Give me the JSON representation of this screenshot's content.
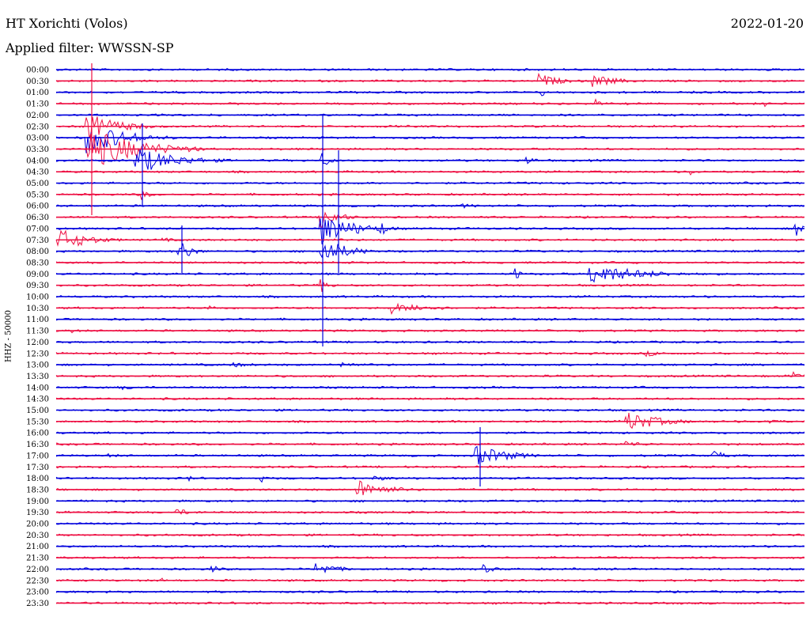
{
  "header": {
    "station": "HT Xorichti (Volos)",
    "date": "2022-01-20",
    "filter_label": "Applied filter: WWSSN-SP"
  },
  "channel_label": "HHZ - 50000",
  "colors": {
    "trace_a": "#0000dd",
    "trace_b": "#ee1144"
  },
  "rows": [
    "00:00",
    "00:30",
    "01:00",
    "01:30",
    "02:00",
    "02:30",
    "03:00",
    "03:30",
    "04:00",
    "04:30",
    "05:00",
    "05:30",
    "06:00",
    "06:30",
    "07:00",
    "07:30",
    "08:00",
    "08:30",
    "09:00",
    "09:30",
    "10:00",
    "10:30",
    "11:00",
    "11:30",
    "12:00",
    "12:30",
    "13:00",
    "13:30",
    "14:00",
    "14:30",
    "15:00",
    "15:30",
    "16:00",
    "16:30",
    "17:00",
    "17:30",
    "18:00",
    "18:30",
    "19:00",
    "19:30",
    "20:00",
    "20:30",
    "21:00",
    "21:30",
    "22:00",
    "22:30",
    "23:00",
    "23:30"
  ]
}
